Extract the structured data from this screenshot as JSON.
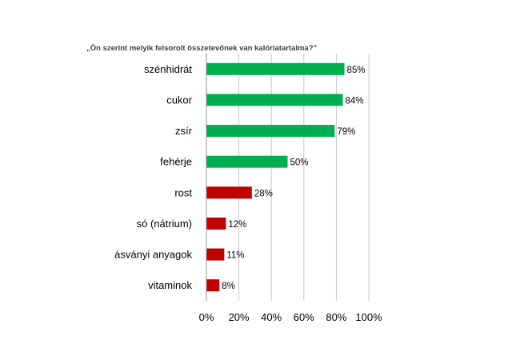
{
  "chart_data": {
    "type": "bar",
    "orientation": "horizontal",
    "title": "„Ön szerint melyik felsorolt összetevőnek van kalóriatartalma?”",
    "categories": [
      "szénhidrát",
      "cukor",
      "zsír",
      "fehérje",
      "rost",
      "só (nátrium)",
      "ásványi anyagok",
      "vitaminok"
    ],
    "values": [
      85,
      84,
      79,
      50,
      28,
      12,
      11,
      8
    ],
    "value_labels": [
      "85%",
      "84%",
      "79%",
      "50%",
      "28%",
      "12%",
      "11%",
      "8%"
    ],
    "bar_colors": [
      "#00b050",
      "#00b050",
      "#00b050",
      "#00b050",
      "#c00000",
      "#c00000",
      "#c00000",
      "#c00000"
    ],
    "x_ticks": [
      "0%",
      "20%",
      "40%",
      "60%",
      "80%",
      "100%"
    ],
    "xlim": [
      0,
      100
    ],
    "grid": true,
    "legend": false
  }
}
